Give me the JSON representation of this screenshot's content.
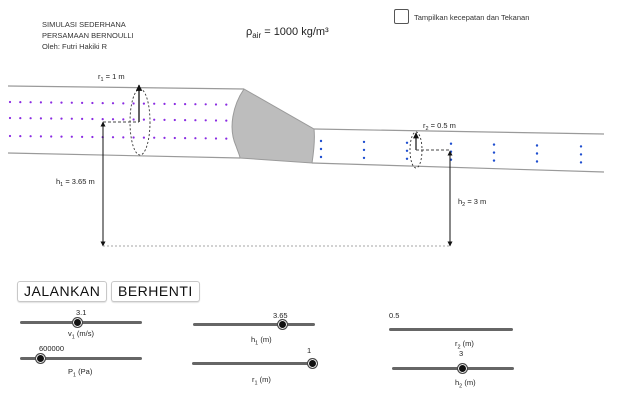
{
  "credits": {
    "line1": "SIMULASI SEDERHANA",
    "line2": "PERSAMAAN BERNOULLI",
    "line3": "Oleh: Futri Hakiki R"
  },
  "density": {
    "symbol": "ρ",
    "subscript": "air",
    "value": " = 1000 kg/m³"
  },
  "checkbox": {
    "label": "Tampilkan kecepatan dan Tekanan",
    "checked": false
  },
  "annotations": {
    "r1": {
      "symbol": "r",
      "sub": "1",
      "value": " = 1 m"
    },
    "r2": {
      "symbol": "r",
      "sub": "2",
      "value": " = 0.5 m"
    },
    "h1": {
      "symbol": "h",
      "sub": "1",
      "value": " = 3.65 m"
    },
    "h2": {
      "symbol": "h",
      "sub": "2",
      "value": " = 3 m"
    }
  },
  "buttons": {
    "run": "JALANKAN",
    "stop": "BERHENTI"
  },
  "sliders": {
    "v1": {
      "value": "3.1",
      "label": "v",
      "sub": "1",
      "unit": " (m/s)",
      "fraction": 0.47
    },
    "p1": {
      "value": "600000",
      "label": "P",
      "sub": "1",
      "unit": " (Pa)",
      "fraction": 0.16
    },
    "h1": {
      "value": "3.65",
      "label": "h",
      "sub": "1",
      "unit": " (m)",
      "fraction": 0.73
    },
    "r1": {
      "value": "1",
      "label": "r",
      "sub": "1",
      "unit": " (m)",
      "fraction": 1.0
    },
    "r2": {
      "value": "0.5",
      "label": "r",
      "sub": "2",
      "unit": " (m)",
      "fraction": 0.0
    },
    "h2": {
      "value": "3",
      "label": "h",
      "sub": "2",
      "unit": " (m)",
      "fraction": 0.57
    }
  },
  "colors": {
    "pipe_wall": "#9a9a9a",
    "taper": "#bdbdbd",
    "dots_wide": "#8a2be2",
    "dots_narrow": "#1f4fd0"
  }
}
